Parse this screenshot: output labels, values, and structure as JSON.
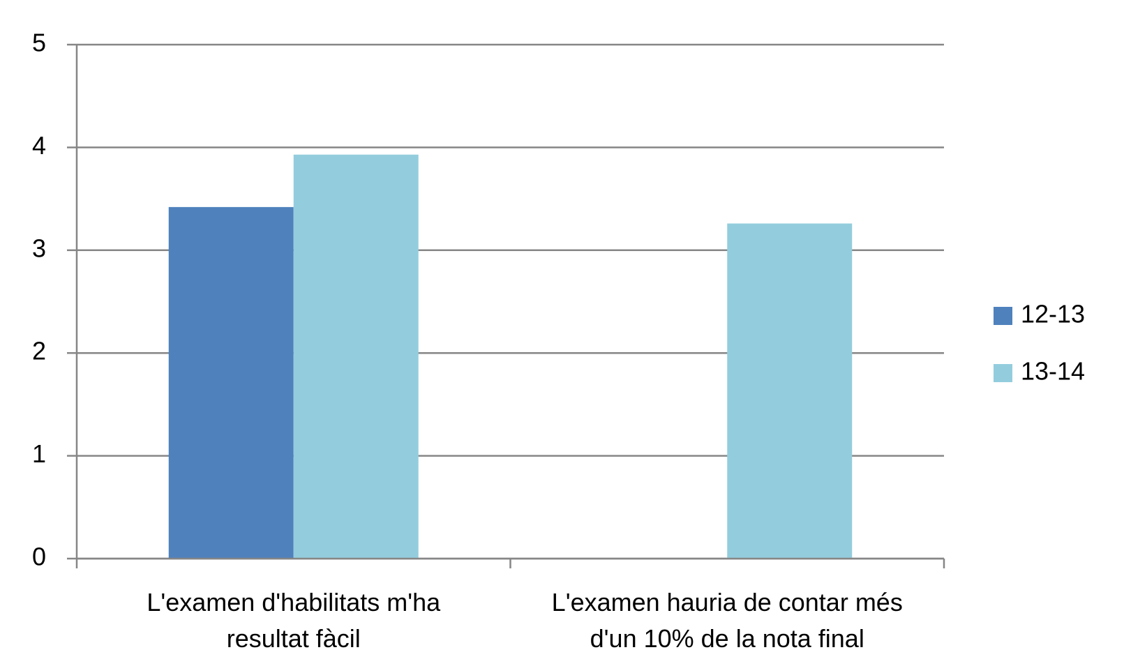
{
  "chart_data": {
    "type": "bar",
    "categories": [
      "L'examen d'habilitats m'ha resultat fàcil",
      "L'examen hauria de contar més d'un 10% de la nota final"
    ],
    "series": [
      {
        "name": "12-13",
        "color": "#4f81bd",
        "values": [
          3.42,
          null
        ]
      },
      {
        "name": "13-14",
        "color": "#93cddd",
        "values": [
          3.93,
          3.26
        ]
      }
    ],
    "ylim": [
      0,
      5
    ],
    "yticks": [
      0,
      1,
      2,
      3,
      4,
      5
    ],
    "grid": true,
    "legend": "right"
  }
}
